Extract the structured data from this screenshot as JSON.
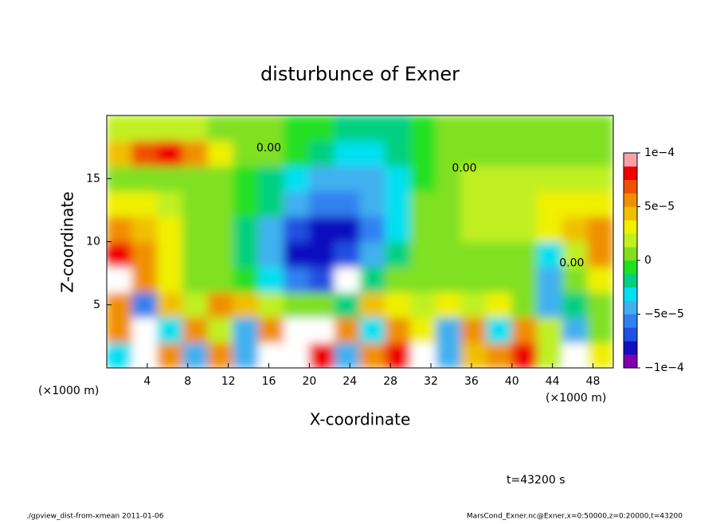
{
  "chart_data": {
    "type": "heatmap",
    "title": "disturbunce of Exner",
    "xlabel": "X-coordinate",
    "ylabel": "Z-coordinate",
    "x_unit": "(×1000 m)",
    "y_unit": "(×1000 m)",
    "time_label": "t=43200 s",
    "footer_left": "./gpview_dist-from-xmean  2011-01-06",
    "footer_right": "MarsCond_Exner.nc@Exner,x=0:50000,z=0:20000,t=43200",
    "xlim": [
      0,
      50
    ],
    "ylim": [
      0,
      20
    ],
    "xticks": [
      4,
      8,
      12,
      16,
      20,
      24,
      28,
      32,
      36,
      40,
      44,
      48
    ],
    "yticks": [
      5,
      10,
      15
    ],
    "x": [
      1.25,
      3.75,
      6.25,
      8.75,
      11.25,
      13.75,
      16.25,
      18.75,
      21.25,
      23.75,
      26.25,
      28.75,
      31.25,
      33.75,
      36.25,
      38.75,
      41.25,
      43.75,
      46.25,
      48.75
    ],
    "z": [
      1,
      3,
      5,
      7,
      9,
      11,
      13,
      15,
      17,
      19
    ],
    "values": [
      [
        -3e-05,
        0.00012,
        5e-05,
        -4e-05,
        6e-05,
        -4e-05,
        0.00012,
        0.00012,
        8e-05,
        -5e-05,
        5e-05,
        8e-05,
        0.00012,
        -4e-05,
        4e-05,
        6e-05,
        8e-05,
        2e-05,
        0.00012,
        3e-05
      ],
      [
        6e-05,
        0.00012,
        -3e-05,
        5e-05,
        2e-05,
        -5e-05,
        6e-05,
        0.00012,
        0.00012,
        5e-05,
        -3e-05,
        6e-05,
        3e-05,
        -5e-05,
        5e-05,
        -3e-05,
        5e-05,
        2e-05,
        -4e-05,
        1e-05
      ],
      [
        5e-05,
        -6e-05,
        4e-05,
        2e-05,
        5e-05,
        4e-05,
        2e-05,
        0,
        0,
        -2e-05,
        4e-05,
        3e-05,
        2e-05,
        3e-05,
        2e-05,
        3e-05,
        1e-05,
        -4e-05,
        -2e-05,
        1e-05
      ],
      [
        0.00012,
        6e-05,
        3e-05,
        1e-05,
        0,
        -1e-05,
        -3e-05,
        -6e-05,
        -7e-05,
        0.00012,
        -2e-05,
        0,
        1e-05,
        1e-05,
        1e-05,
        1e-05,
        0,
        -5e-05,
        1e-05,
        3e-05
      ],
      [
        8e-05,
        6e-05,
        3e-05,
        1e-05,
        0,
        -2e-05,
        -5e-05,
        -8e-05,
        -8e-05,
        -7e-05,
        -5e-05,
        -2e-05,
        0,
        1e-05,
        1e-05,
        1e-05,
        1e-05,
        -3e-05,
        2e-05,
        5e-05
      ],
      [
        5e-05,
        4e-05,
        3e-05,
        1e-05,
        0,
        -2e-05,
        -4e-05,
        -7e-05,
        -8e-05,
        -8e-05,
        -6e-05,
        -3e-05,
        0,
        1e-05,
        2e-05,
        2e-05,
        2e-05,
        3e-05,
        4e-05,
        5e-05
      ],
      [
        3e-05,
        3e-05,
        2e-05,
        1e-05,
        0,
        -1e-05,
        -2e-05,
        -4e-05,
        -6e-05,
        -6e-05,
        -5e-05,
        -3e-05,
        0,
        1e-05,
        2e-05,
        2e-05,
        2e-05,
        3e-05,
        3e-05,
        3e-05
      ],
      [
        1e-05,
        1e-05,
        1e-05,
        1e-05,
        0,
        -1e-05,
        -2e-05,
        -3e-05,
        -4e-05,
        -5e-05,
        -4e-05,
        -3e-05,
        -1e-05,
        1e-05,
        2e-05,
        2e-05,
        2e-05,
        2e-05,
        2e-05,
        2e-05
      ],
      [
        4e-05,
        7e-05,
        8e-05,
        6e-05,
        3e-05,
        1e-05,
        0,
        -1e-05,
        -2e-05,
        -3e-05,
        -3e-05,
        -2e-05,
        -1e-05,
        0,
        1e-05,
        1e-05,
        1e-05,
        1e-05,
        1e-05,
        1e-05
      ],
      [
        2e-05,
        2e-05,
        2e-05,
        2e-05,
        1e-05,
        0,
        0,
        -1e-05,
        -1e-05,
        -2e-05,
        -2e-05,
        -2e-05,
        -1e-05,
        0,
        0,
        0,
        0,
        1e-05,
        1e-05,
        1e-05
      ]
    ],
    "clim": [
      -0.0001,
      0.0001
    ],
    "colors": [
      "#8000b0",
      "#1010c0",
      "#2050e0",
      "#3080f0",
      "#40b0f0",
      "#00e0f0",
      "#00d080",
      "#20e020",
      "#80e020",
      "#c0f020",
      "#f0f000",
      "#f0c000",
      "#f09000",
      "#f05000",
      "#f00000",
      "#f8a0a8"
    ],
    "over_color": "#ffffff",
    "cticks": [
      {
        "value": -0.0001,
        "label": "−1e−4"
      },
      {
        "value": -5e-05,
        "label": "−5e−5"
      },
      0,
      {
        "value": 5e-05,
        "label": "5e−5"
      },
      {
        "value": 0.0001,
        "label": "1e−4"
      }
    ],
    "annotations": [
      {
        "text": "0.00",
        "x": 16.0,
        "y": 17.4
      },
      {
        "text": "0.00",
        "x": 35.3,
        "y": 15.8
      },
      {
        "text": "0.00",
        "x": 45.9,
        "y": 8.3
      }
    ]
  }
}
